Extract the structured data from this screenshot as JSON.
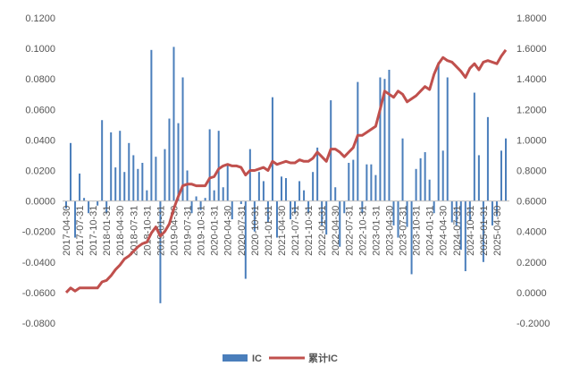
{
  "chart_data": {
    "type": "bar+line",
    "title": "",
    "colors": {
      "bars": "#4a7ebb",
      "line": "#c0504d"
    },
    "legend": {
      "position": "bottom",
      "entries": [
        "IC",
        "累计IC"
      ]
    },
    "grid": false,
    "left_axis": {
      "ylim": [
        -0.08,
        0.12
      ],
      "ticks": [
        "0.1200",
        "0.1000",
        "0.0800",
        "0.0600",
        "0.0400",
        "0.0200",
        "0.0000",
        "-0.0200",
        "-0.0400",
        "-0.0600",
        "-0.0800"
      ]
    },
    "right_axis": {
      "ylim": [
        -0.2,
        1.8
      ],
      "ticks": [
        "1.8000",
        "1.6000",
        "1.4000",
        "1.2000",
        "1.0000",
        "0.8000",
        "0.6000",
        "0.4000",
        "0.2000",
        "0.0000",
        "-0.2000"
      ]
    },
    "x_tick_labels": [
      "2017-04-30",
      "2017-07-31",
      "2017-10-31",
      "2018-01-31",
      "2018-04-30",
      "2018-07-31",
      "2018-10-31",
      "2019-01-31",
      "2019-04-30",
      "2019-07-31",
      "2019-10-31",
      "2020-01-31",
      "2020-04-30",
      "2020-07-31",
      "2020-10-31",
      "2021-01-31",
      "2021-04-30",
      "2021-07-31",
      "2021-10-31",
      "2022-01-31",
      "2022-04-30",
      "2022-07-31",
      "2022-10-31",
      "2023-01-31",
      "2023-04-30",
      "2023-07-31",
      "2023-10-31",
      "2024-01-31",
      "2024-04-30",
      "2024-07-31",
      "2024-10-31",
      "2025-01-31",
      "2025-04-30"
    ],
    "series": [
      {
        "name": "IC",
        "axis": "left",
        "type": "bar",
        "values": [
          -0.005,
          0.038,
          -0.024,
          0.018,
          0.002,
          -0.008,
          0.0,
          -0.003,
          0.053,
          -0.008,
          0.045,
          0.022,
          0.046,
          0.019,
          0.038,
          0.03,
          0.021,
          0.025,
          0.007,
          0.099,
          0.029,
          -0.067,
          0.034,
          0.054,
          0.101,
          0.051,
          0.081,
          0.02,
          -0.008,
          0.003,
          -0.006,
          0.002,
          0.047,
          0.007,
          0.046,
          0.009,
          0.024,
          -0.012,
          0.0,
          -0.002,
          -0.051,
          0.034,
          -0.02,
          0.019,
          0.013,
          -0.014,
          0.068,
          -0.024,
          0.016,
          0.015,
          -0.012,
          -0.008,
          0.013,
          0.007,
          -0.008,
          0.019,
          0.035,
          -0.016,
          -0.022,
          0.066,
          0.009,
          -0.03,
          -0.008,
          0.025,
          0.027,
          0.078,
          -0.008,
          0.024,
          0.024,
          0.017,
          0.081,
          0.08,
          0.086,
          -0.016,
          -0.024,
          0.041,
          -0.017,
          -0.048,
          0.021,
          0.028,
          0.032,
          0.014,
          -0.008,
          0.091,
          0.033,
          0.081,
          -0.014,
          -0.016,
          -0.032,
          -0.046,
          -0.013,
          0.071,
          0.03,
          -0.04,
          0.055,
          -0.016,
          -0.01,
          0.033,
          0.041
        ]
      },
      {
        "name": "累计IC",
        "axis": "right",
        "type": "line",
        "values": [
          0.0,
          0.03,
          0.01,
          0.03,
          0.03,
          0.03,
          0.03,
          0.03,
          0.07,
          0.08,
          0.11,
          0.15,
          0.18,
          0.22,
          0.24,
          0.27,
          0.3,
          0.32,
          0.33,
          0.39,
          0.43,
          0.37,
          0.4,
          0.45,
          0.55,
          0.63,
          0.7,
          0.71,
          0.71,
          0.7,
          0.7,
          0.7,
          0.75,
          0.76,
          0.81,
          0.83,
          0.84,
          0.83,
          0.83,
          0.82,
          0.77,
          0.8,
          0.8,
          0.81,
          0.82,
          0.8,
          0.86,
          0.84,
          0.85,
          0.86,
          0.85,
          0.85,
          0.87,
          0.86,
          0.86,
          0.88,
          0.92,
          0.89,
          0.86,
          0.94,
          0.94,
          0.92,
          0.89,
          0.92,
          0.95,
          1.03,
          1.03,
          1.05,
          1.07,
          1.09,
          1.2,
          1.32,
          1.3,
          1.28,
          1.32,
          1.3,
          1.25,
          1.27,
          1.29,
          1.32,
          1.35,
          1.33,
          1.43,
          1.5,
          1.54,
          1.52,
          1.51,
          1.48,
          1.45,
          1.41,
          1.47,
          1.5,
          1.46,
          1.51,
          1.52,
          1.51,
          1.5,
          1.55,
          1.59
        ]
      }
    ]
  }
}
